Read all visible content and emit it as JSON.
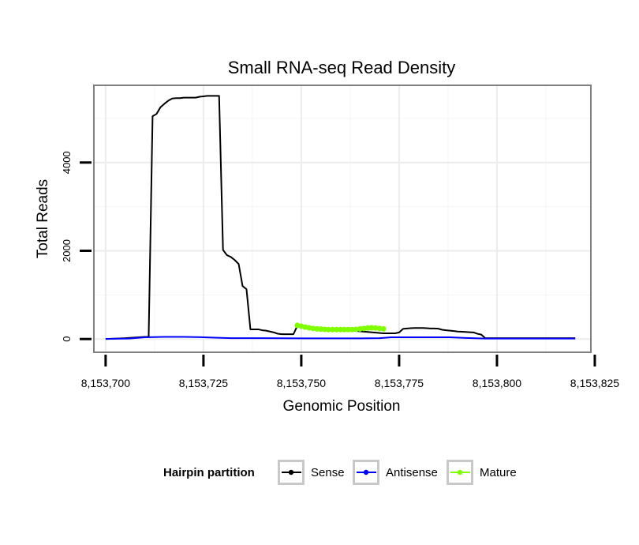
{
  "chart_data": {
    "type": "line",
    "title": "Small RNA-seq Read Density",
    "xlabel": "Genomic Position",
    "ylabel": "Total Reads",
    "xlim": [
      8153697,
      8153824
    ],
    "ylim": [
      -300,
      5750
    ],
    "x_ticks": [
      8153700,
      8153725,
      8153750,
      8153775,
      8153800,
      8153825
    ],
    "x_tick_labels": [
      "8,153,700",
      "8,153,725",
      "8,153,750",
      "8,153,775",
      "8,153,800",
      "8,153,825"
    ],
    "y_ticks": [
      0,
      2000,
      4000
    ],
    "y_tick_labels": [
      "0",
      "2000",
      "4000"
    ],
    "grid": true,
    "legend": {
      "title": "Hairpin partition",
      "position": "bottom",
      "entries": [
        "Sense",
        "Antisense",
        "Mature"
      ]
    },
    "series": [
      {
        "name": "Sense",
        "color": "#000000",
        "marker": false,
        "x": [
          8153700,
          8153705,
          8153710,
          8153711,
          8153712,
          8153713,
          8153714,
          8153715,
          8153716,
          8153717,
          8153718,
          8153719,
          8153720,
          8153721,
          8153722,
          8153723,
          8153724,
          8153725,
          8153726,
          8153727,
          8153728,
          8153729,
          8153730,
          8153731,
          8153732,
          8153733,
          8153734,
          8153735,
          8153736,
          8153737,
          8153738,
          8153739,
          8153740,
          8153741,
          8153742,
          8153743,
          8153744,
          8153745,
          8153746,
          8153747,
          8153748,
          8153749,
          8153771,
          8153772,
          8153773,
          8153774,
          8153775,
          8153776,
          8153777,
          8153778,
          8153779,
          8153780,
          8153781,
          8153782,
          8153783,
          8153784,
          8153785,
          8153786,
          8153787,
          8153788,
          8153789,
          8153790,
          8153791,
          8153792,
          8153793,
          8153794,
          8153795,
          8153796,
          8153797,
          8153800,
          8153810,
          8153820
        ],
        "values": [
          0,
          20,
          50,
          50,
          5050,
          5100,
          5250,
          5330,
          5400,
          5450,
          5460,
          5460,
          5470,
          5470,
          5470,
          5470,
          5490,
          5500,
          5510,
          5510,
          5510,
          5510,
          2020,
          1900,
          1860,
          1790,
          1700,
          1200,
          1130,
          220,
          220,
          220,
          200,
          190,
          170,
          150,
          120,
          110,
          110,
          110,
          110,
          300,
          130,
          130,
          130,
          130,
          150,
          230,
          240,
          245,
          250,
          250,
          250,
          245,
          240,
          240,
          235,
          210,
          200,
          190,
          180,
          170,
          165,
          160,
          155,
          150,
          120,
          100,
          20,
          20,
          20,
          20
        ]
      },
      {
        "name": "Antisense",
        "color": "#0000ff",
        "marker": false,
        "x": [
          8153700,
          8153706,
          8153710,
          8153715,
          8153720,
          8153725,
          8153728,
          8153732,
          8153740,
          8153750,
          8153760,
          8153765,
          8153770,
          8153773,
          8153780,
          8153788,
          8153792,
          8153797,
          8153800,
          8153810,
          8153820
        ],
        "values": [
          5,
          10,
          40,
          50,
          50,
          40,
          30,
          20,
          20,
          15,
          15,
          15,
          20,
          40,
          40,
          40,
          25,
          10,
          10,
          10,
          10
        ]
      },
      {
        "name": "Mature",
        "color": "#7fff00",
        "marker": true,
        "x": [
          8153749,
          8153750,
          8153751,
          8153752,
          8153753,
          8153754,
          8153755,
          8153756,
          8153757,
          8153758,
          8153759,
          8153760,
          8153761,
          8153762,
          8153763,
          8153764,
          8153765,
          8153766,
          8153767,
          8153768,
          8153769,
          8153770,
          8153771
        ],
        "values": [
          310,
          290,
          270,
          255,
          240,
          230,
          225,
          220,
          215,
          215,
          215,
          215,
          215,
          215,
          215,
          220,
          230,
          240,
          250,
          255,
          250,
          240,
          230
        ]
      }
    ]
  }
}
